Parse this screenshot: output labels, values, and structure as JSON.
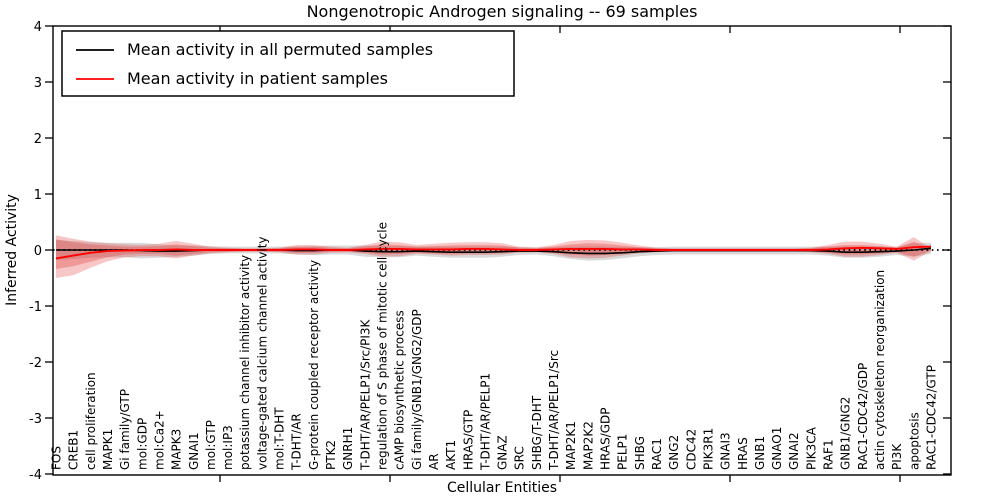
{
  "chart_data": {
    "type": "line",
    "title": "Nongenotropic Androgen signaling -- 69 samples",
    "xlabel": "Cellular Entities",
    "ylabel": "Inferred Activity",
    "ylim": [
      -4,
      4
    ],
    "yticks": [
      "4",
      "3",
      "2",
      "1",
      "0",
      "-1",
      "-2",
      "-3",
      "-4"
    ],
    "grid": false,
    "zero_reference_line": true,
    "legend_position": "upper left",
    "categories": [
      "FOS",
      "CREB1",
      "cell proliferation",
      "MAPK1",
      "Gi family/GTP",
      "mol:GDP",
      "mol:Ca2+",
      "MAPK3",
      "GNAI1",
      "mol:GTP",
      "mol:IP3",
      "potassium channel inhibitor activity",
      "voltage-gated calcium channel activity",
      "mol:T-DHT",
      "T-DHT/AR",
      "G-protein coupled receptor activity",
      "PTK2",
      "GNRH1",
      "T-DHT/AR/PELP1/Src/PI3K",
      "regulation of S phase of mitotic cell cycle",
      "cAMP biosynthetic process",
      "Gi family/GNB1/GNG2/GDP",
      "AR",
      "AKT1",
      "HRAS/GTP",
      "T-DHT/AR/PELP1",
      "GNAZ",
      "SRC",
      "SHBG/T-DHT",
      "T-DHT/AR/PELP1/Src",
      "MAP2K1",
      "MAP2K2",
      "HRAS/GDP",
      "PELP1",
      "SHBG",
      "RAC1",
      "GNG2",
      "CDC42",
      "PIK3R1",
      "GNAI3",
      "HRAS",
      "GNB1",
      "GNAO1",
      "GNAI2",
      "PIK3CA",
      "RAF1",
      "GNB1/GNG2",
      "RAC1-CDC42/GDP",
      "actin cytoskeleton reorganization",
      "PI3K",
      "apoptosis",
      "RAC1-CDC42/GTP"
    ],
    "series": [
      {
        "name": "Mean activity in all permuted samples",
        "color": "#000000",
        "values": [
          0,
          0,
          0,
          0,
          0,
          -0.01,
          -0.02,
          -0.02,
          -0.01,
          0,
          0,
          0,
          0,
          0,
          -0.01,
          -0.01,
          0,
          0,
          -0.02,
          -0.03,
          -0.03,
          -0.02,
          -0.03,
          -0.04,
          -0.04,
          -0.04,
          -0.03,
          -0.02,
          -0.02,
          -0.03,
          -0.05,
          -0.06,
          -0.06,
          -0.05,
          -0.03,
          -0.02,
          -0.01,
          -0.01,
          -0.01,
          -0.01,
          -0.01,
          -0.01,
          -0.01,
          -0.01,
          -0.01,
          -0.02,
          -0.04,
          -0.04,
          -0.03,
          -0.02,
          0,
          0.03
        ]
      },
      {
        "name": "Mean activity in patient samples",
        "color": "#ff0000",
        "values": [
          -0.15,
          -0.1,
          -0.05,
          -0.02,
          -0.01,
          0,
          0,
          0.01,
          0,
          0,
          0,
          0,
          0,
          0,
          0.01,
          0.01,
          0,
          0,
          0.01,
          0.02,
          0.02,
          0.01,
          0.01,
          0.01,
          0.02,
          0.02,
          0.01,
          0,
          0,
          0.01,
          0.02,
          0.02,
          0.02,
          0.01,
          0.01,
          0,
          0,
          0,
          0,
          0,
          0,
          0,
          0,
          0,
          0,
          0.01,
          0.03,
          0.04,
          0.03,
          0.02,
          0.05,
          0.06
        ]
      }
    ],
    "bands": [
      {
        "name": "permuted-samples-spread",
        "color": "#8c8c8c",
        "opacity": 0.32,
        "center_series": 0,
        "half": [
          0.18,
          0.16,
          0.14,
          0.13,
          0.13,
          0.14,
          0.12,
          0.1,
          0.09,
          0.07,
          0.06,
          0.06,
          0.06,
          0.06,
          0.07,
          0.08,
          0.08,
          0.08,
          0.1,
          0.1,
          0.1,
          0.08,
          0.09,
          0.1,
          0.1,
          0.1,
          0.09,
          0.07,
          0.06,
          0.08,
          0.11,
          0.13,
          0.12,
          0.1,
          0.08,
          0.07,
          0.07,
          0.07,
          0.07,
          0.07,
          0.07,
          0.07,
          0.07,
          0.07,
          0.07,
          0.08,
          0.1,
          0.1,
          0.09,
          0.07,
          0.12,
          0.1
        ]
      },
      {
        "name": "patient-samples-outer-spread",
        "color": "#e03030",
        "opacity": 0.27,
        "upper": [
          0.26,
          0.2,
          0.15,
          0.12,
          0.1,
          0.09,
          0.11,
          0.16,
          0.11,
          0.06,
          0.04,
          0.03,
          0.03,
          0.04,
          0.09,
          0.09,
          0.06,
          0.04,
          0.09,
          0.15,
          0.14,
          0.09,
          0.11,
          0.13,
          0.14,
          0.14,
          0.12,
          0.06,
          0.05,
          0.09,
          0.16,
          0.18,
          0.17,
          0.13,
          0.08,
          0.04,
          0.03,
          0.03,
          0.03,
          0.03,
          0.03,
          0.03,
          0.03,
          0.03,
          0.04,
          0.09,
          0.15,
          0.15,
          0.11,
          0.06,
          0.23,
          0.03
        ],
        "lower": [
          -0.5,
          -0.45,
          -0.32,
          -0.2,
          -0.13,
          -0.11,
          -0.11,
          -0.15,
          -0.1,
          -0.06,
          -0.04,
          -0.03,
          -0.03,
          -0.04,
          -0.08,
          -0.08,
          -0.05,
          -0.04,
          -0.07,
          -0.12,
          -0.11,
          -0.07,
          -0.08,
          -0.1,
          -0.09,
          -0.09,
          -0.08,
          -0.05,
          -0.04,
          -0.07,
          -0.13,
          -0.15,
          -0.14,
          -0.1,
          -0.06,
          -0.04,
          -0.03,
          -0.03,
          -0.03,
          -0.03,
          -0.03,
          -0.03,
          -0.03,
          -0.03,
          -0.04,
          -0.07,
          -0.12,
          -0.12,
          -0.09,
          -0.05,
          -0.19,
          -0.02
        ]
      },
      {
        "name": "patient-samples-inner-spread",
        "color": "#e03030",
        "opacity": 0.3,
        "upper": [
          0.19,
          0.14,
          0.1,
          0.08,
          0.06,
          0.06,
          0.07,
          0.1,
          0.07,
          0.04,
          0.03,
          0.02,
          0.02,
          0.03,
          0.06,
          0.06,
          0.04,
          0.03,
          0.06,
          0.1,
          0.09,
          0.06,
          0.07,
          0.08,
          0.09,
          0.09,
          0.08,
          0.04,
          0.03,
          0.06,
          0.1,
          0.12,
          0.11,
          0.08,
          0.05,
          0.03,
          0.02,
          0.02,
          0.02,
          0.02,
          0.02,
          0.02,
          0.02,
          0.02,
          0.03,
          0.06,
          0.09,
          0.09,
          0.07,
          0.04,
          0.15,
          0.02
        ],
        "lower": [
          -0.34,
          -0.29,
          -0.21,
          -0.13,
          -0.08,
          -0.07,
          -0.07,
          -0.1,
          -0.07,
          -0.04,
          -0.03,
          -0.02,
          -0.02,
          -0.03,
          -0.05,
          -0.05,
          -0.03,
          -0.03,
          -0.05,
          -0.08,
          -0.07,
          -0.05,
          -0.06,
          -0.07,
          -0.06,
          -0.06,
          -0.05,
          -0.03,
          -0.03,
          -0.05,
          -0.08,
          -0.1,
          -0.09,
          -0.07,
          -0.04,
          -0.03,
          -0.02,
          -0.02,
          -0.02,
          -0.02,
          -0.02,
          -0.02,
          -0.02,
          -0.02,
          -0.03,
          -0.05,
          -0.08,
          -0.08,
          -0.06,
          -0.04,
          -0.12,
          -0.01
        ]
      }
    ]
  }
}
